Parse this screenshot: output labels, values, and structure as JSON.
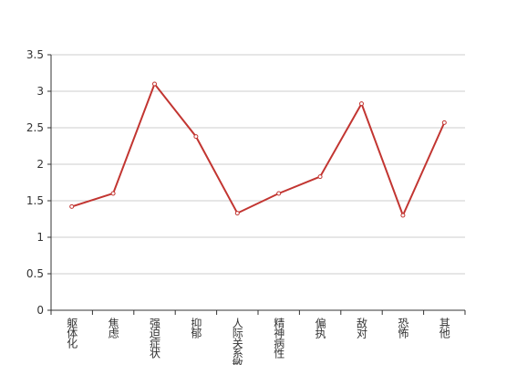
{
  "chart_data": {
    "type": "line",
    "categories": [
      "躯体化",
      "焦虑",
      "强迫症状",
      "抑郁",
      "人际关系敏感",
      "精神病性",
      "偏执",
      "敌对",
      "恐怖",
      "其他"
    ],
    "series": [
      {
        "color": "#c23531",
        "values": [
          1.42,
          1.6,
          3.1,
          2.38,
          1.33,
          1.6,
          1.83,
          2.83,
          1.3,
          2.57
        ]
      }
    ],
    "ylim": [
      0,
      3.5
    ],
    "yticks": [
      0,
      0.5,
      1,
      1.5,
      2,
      2.5,
      3,
      3.5
    ],
    "grid": true
  }
}
